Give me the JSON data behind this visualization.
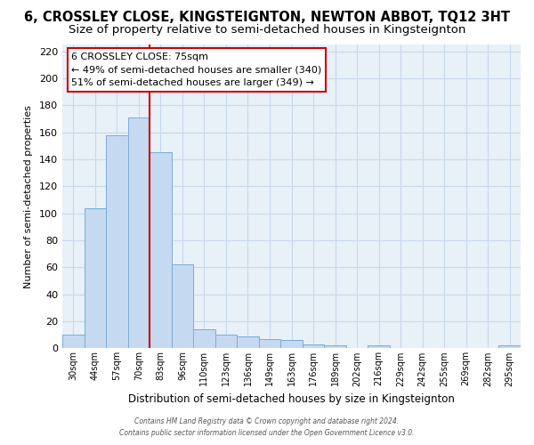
{
  "title": "6, CROSSLEY CLOSE, KINGSTEIGNTON, NEWTON ABBOT, TQ12 3HT",
  "subtitle": "Size of property relative to semi-detached houses in Kingsteignton",
  "xlabel": "Distribution of semi-detached houses by size in Kingsteignton",
  "ylabel": "Number of semi-detached properties",
  "footer1": "Contains HM Land Registry data © Crown copyright and database right 2024.",
  "footer2": "Contains public sector information licensed under the Open Government Licence v3.0.",
  "annotation_title": "6 CROSSLEY CLOSE: 75sqm",
  "annotation_line1": "← 49% of semi-detached houses are smaller (340)",
  "annotation_line2": "51% of semi-detached houses are larger (349) →",
  "bar_labels": [
    "30sqm",
    "44sqm",
    "57sqm",
    "70sqm",
    "83sqm",
    "96sqm",
    "110sqm",
    "123sqm",
    "136sqm",
    "149sqm",
    "163sqm",
    "176sqm",
    "189sqm",
    "202sqm",
    "216sqm",
    "229sqm",
    "242sqm",
    "255sqm",
    "269sqm",
    "282sqm",
    "295sqm"
  ],
  "bar_values": [
    10,
    104,
    158,
    171,
    145,
    62,
    14,
    10,
    9,
    7,
    6,
    3,
    2,
    0,
    2,
    0,
    0,
    0,
    0,
    0,
    2
  ],
  "bar_color": "#c5d9f1",
  "bar_edge_color": "#7aadd4",
  "redline_x": 3.5,
  "ylim": [
    0,
    225
  ],
  "yticks": [
    0,
    20,
    40,
    60,
    80,
    100,
    120,
    140,
    160,
    180,
    200,
    220
  ],
  "grid_color": "#c8d8ea",
  "title_fontsize": 10.5,
  "subtitle_fontsize": 9.5,
  "annotation_box_color": "#ffffff",
  "annotation_box_edge": "#cc0000",
  "bg_color": "#e8f0f8"
}
